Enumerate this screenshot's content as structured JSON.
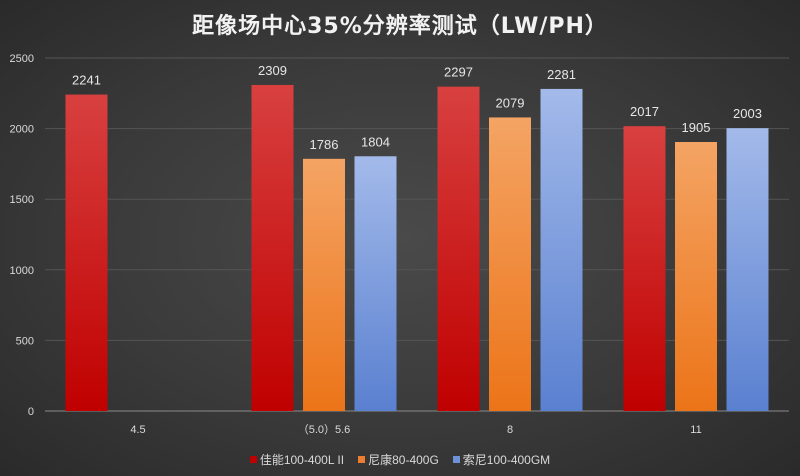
{
  "chart_data": {
    "type": "bar",
    "title": "距像场中心35%分辨率测试（LW/PH）",
    "xlabel": "",
    "ylabel": "",
    "categories": [
      "4.5",
      "（5.0）5.6",
      "8",
      "11"
    ],
    "series": [
      {
        "name": "佳能100-400L II",
        "values": [
          2241,
          2309,
          2297,
          2017
        ],
        "color": "#c00000"
      },
      {
        "name": "尼康80-400G",
        "values": [
          null,
          1786,
          2079,
          1905
        ],
        "color": "#ed7d31"
      },
      {
        "name": "索尼100-400GM",
        "values": [
          null,
          1804,
          2281,
          2003
        ],
        "color": "#6f91d8"
      }
    ],
    "ylim": [
      0,
      2500
    ],
    "yticks": [
      0,
      500,
      1000,
      1500,
      2000,
      2500
    ],
    "grid": true,
    "legend_position": "bottom",
    "data_labels": true
  }
}
